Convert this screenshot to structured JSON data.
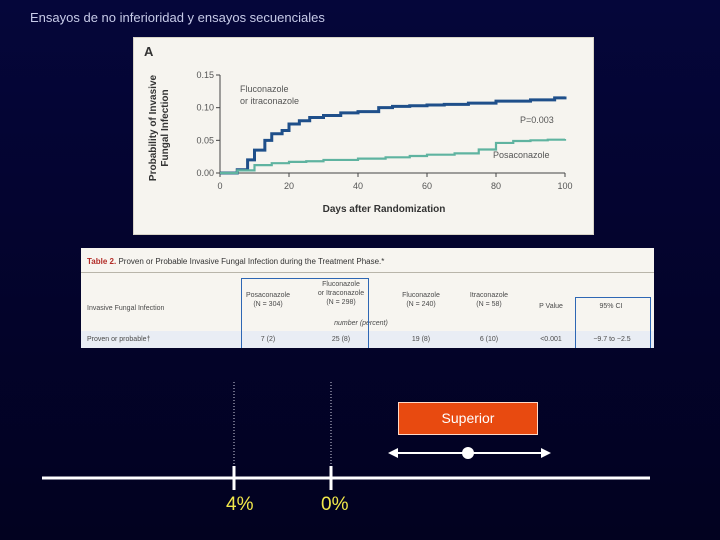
{
  "slide": {
    "title": "Ensayos de no inferioridad y ensayos secuenciales"
  },
  "chart_data": [
    {
      "type": "line",
      "panel_label": "A",
      "ylabel": "Probability of Invasive Fungal Infection",
      "xlabel": "Days after Randomization",
      "xlim": [
        0,
        100
      ],
      "ylim": [
        0,
        0.15
      ],
      "x_ticks": [
        "0",
        "20",
        "40",
        "60",
        "80",
        "100"
      ],
      "y_ticks": [
        "0.00",
        "0.05",
        "0.10",
        "0.15"
      ],
      "annotation": "P=0.003",
      "series": [
        {
          "name": "Fluconazole or itraconazole",
          "color": "#1f4f8a",
          "points": [
            [
              0,
              0
            ],
            [
              5,
              0.005
            ],
            [
              8,
              0.02
            ],
            [
              10,
              0.035
            ],
            [
              13,
              0.05
            ],
            [
              15,
              0.06
            ],
            [
              18,
              0.065
            ],
            [
              20,
              0.075
            ],
            [
              23,
              0.08
            ],
            [
              26,
              0.085
            ],
            [
              30,
              0.088
            ],
            [
              35,
              0.092
            ],
            [
              40,
              0.094
            ],
            [
              46,
              0.1
            ],
            [
              50,
              0.102
            ],
            [
              55,
              0.103
            ],
            [
              60,
              0.104
            ],
            [
              65,
              0.105
            ],
            [
              72,
              0.107
            ],
            [
              80,
              0.11
            ],
            [
              90,
              0.112
            ],
            [
              97,
              0.115
            ],
            [
              100,
              0.117
            ]
          ]
        },
        {
          "name": "Posaconazole",
          "color": "#5fb3a0",
          "points": [
            [
              0,
              0
            ],
            [
              5,
              0.004
            ],
            [
              10,
              0.012
            ],
            [
              15,
              0.015
            ],
            [
              20,
              0.017
            ],
            [
              25,
              0.018
            ],
            [
              30,
              0.02
            ],
            [
              40,
              0.022
            ],
            [
              48,
              0.024
            ],
            [
              55,
              0.026
            ],
            [
              60,
              0.028
            ],
            [
              68,
              0.03
            ],
            [
              75,
              0.036
            ],
            [
              80,
              0.046
            ],
            [
              85,
              0.049
            ],
            [
              90,
              0.05
            ],
            [
              95,
              0.051
            ],
            [
              100,
              0.052
            ]
          ]
        }
      ]
    },
    {
      "type": "table",
      "caption_label": "Table 2.",
      "caption_text": "Proven or Probable Invasive Fungal Infection during the Treatment Phase.*",
      "columns": [
        "Invasive Fungal Infection",
        "Posaconazole (N = 304)",
        "Fluconazole or Itraconazole (N = 298)",
        "Fluconazole (N = 240)",
        "Itraconazole (N = 58)",
        "P Value",
        "95% CI"
      ],
      "units_row": "number (percent)",
      "rows": [
        [
          "Proven or probable†",
          "7 (2)",
          "25 (8)",
          "19 (8)",
          "6 (10)",
          "<0.001",
          "−9.7 to −2.5"
        ]
      ]
    }
  ],
  "scale": {
    "superior_label": "Superior",
    "ticks": [
      {
        "label": "4%"
      },
      {
        "label": "0%"
      }
    ]
  }
}
